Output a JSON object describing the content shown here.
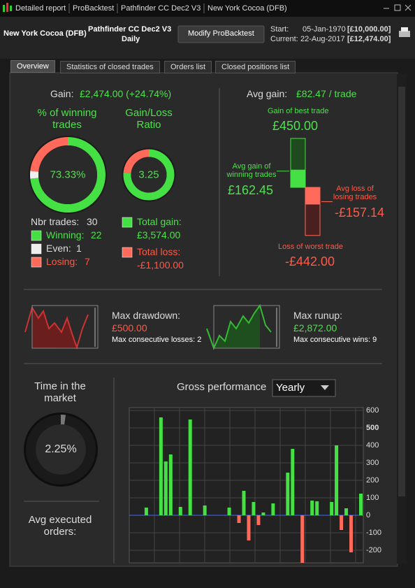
{
  "window": {
    "tabs": [
      "Detailed report",
      "ProBacktest",
      "Pathfinder CC Dec2 V3",
      "New York Cocoa (DFB)"
    ]
  },
  "header": {
    "instrument": "New York Cocoa (DFB)",
    "system": "Pathfinder CC Dec2 V3",
    "period": "Daily",
    "button": "Modify ProBacktest",
    "start_label": "Start:",
    "start_date": "05-Jan-1970",
    "start_capital": "[£10,000.00]",
    "current_label": "Current:",
    "current_date": "22-Aug-2017",
    "current_capital": "[£12,474.00]"
  },
  "tabs": [
    "Overview",
    "Statistics of closed trades",
    "Orders list",
    "Closed positions list"
  ],
  "overview": {
    "gain_label": "Gain:",
    "gain_value": "£2,474.00 (+24.74%)",
    "winning": {
      "title": "% of winning trades",
      "value": 73.33,
      "value_label": "73.33%"
    },
    "ratio": {
      "title": "Gain/Loss Ratio",
      "value": 3.25
    },
    "trades": {
      "label": "Nbr trades:",
      "total": 30,
      "items": [
        {
          "name": "Winning:",
          "count": 22,
          "color": "#44e044"
        },
        {
          "name": "Even:",
          "count": 1,
          "color": "#eeeeee"
        },
        {
          "name": "Losing:",
          "count": 7,
          "color": "#ff6a5a"
        }
      ]
    },
    "total_gain": {
      "label": "Total gain:",
      "value": 3574,
      "value_label": "£3,574.00",
      "color": "#44e044"
    },
    "total_loss": {
      "label": "Total loss:",
      "value": -1100,
      "value_label": "-£1,100.00",
      "color": "#ff6a5a"
    },
    "avg": {
      "label": "Avg gain:",
      "value": "£82.47 / trade",
      "best": {
        "label": "Gain of best trade",
        "value": 450,
        "value_label": "£450.00"
      },
      "avg_win": {
        "label": "Avg gain of winning trades",
        "value": 162.45,
        "value_label": "£162.45"
      },
      "avg_loss": {
        "label": "Avg loss of losing trades",
        "value": -157.14,
        "value_label": "-£157.14"
      },
      "worst": {
        "label": "Loss of worst trade",
        "value": -442,
        "value_label": "-£442.00"
      }
    },
    "drawdown": {
      "label": "Max drawdown:",
      "value": "£500.00",
      "note": "Max consecutive losses: 2"
    },
    "runup": {
      "label": "Max runup:",
      "value": "£2,872.00",
      "note": "Max consecutive wins: 9"
    },
    "time": {
      "title": "Time in the market",
      "value": 2.25,
      "value_label": "2.25%"
    },
    "orders": {
      "title": "Avg executed orders:"
    }
  },
  "chart_data": {
    "type": "bar",
    "title": "Gross performance",
    "period": "Yearly",
    "categories": [
      null,
      null,
      null,
      null,
      null,
      null,
      null,
      null,
      null,
      null,
      null,
      null,
      null,
      null,
      null,
      null,
      null,
      null,
      null,
      null,
      null,
      null,
      null,
      null,
      null,
      null,
      null,
      null,
      null,
      null,
      null,
      null,
      null,
      null,
      null,
      null,
      null,
      null,
      null,
      null,
      null,
      null,
      null,
      null,
      null,
      null,
      null,
      null
    ],
    "values": [
      null,
      null,
      null,
      44,
      null,
      null,
      560,
      308,
      348,
      null,
      48,
      null,
      548,
      null,
      null,
      56,
      null,
      null,
      null,
      null,
      44,
      null,
      -44,
      140,
      -144,
      76,
      -56,
      16,
      null,
      68,
      null,
      null,
      244,
      380,
      null,
      -300,
      null,
      84,
      80,
      null,
      null,
      76,
      400,
      -84,
      40,
      -212,
      null,
      124
    ],
    "positive_color": "#44e044",
    "negative_color": "#ff6a5a",
    "ylim": [
      -272,
      616
    ],
    "yticks": [
      600,
      500,
      400,
      300,
      200,
      100,
      0,
      -100,
      -200
    ],
    "grid": true
  }
}
